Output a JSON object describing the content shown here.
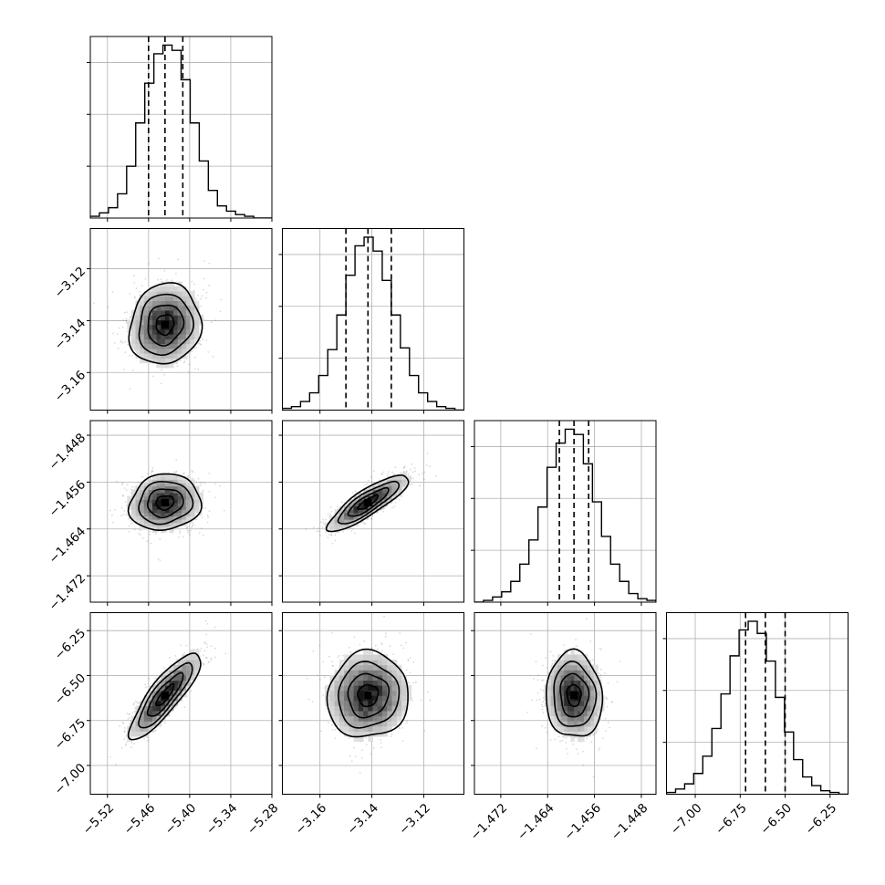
{
  "chart_data": {
    "type": "corner",
    "grid": true,
    "color": "#000000",
    "quantiles": [
      0.16,
      0.5,
      0.84
    ],
    "params": [
      {
        "mean": -5.436,
        "sd": 0.026,
        "lim": [
          -5.545,
          -5.28
        ],
        "ticks": [
          -5.52,
          -5.46,
          -5.4,
          -5.34,
          -5.28
        ],
        "tick_labels": [
          "−5.52",
          "−5.46",
          "−5.40",
          "−5.34",
          "−5.28"
        ],
        "q": [
          -5.46,
          -5.436,
          -5.41
        ],
        "hist": [
          0.01,
          0.03,
          0.06,
          0.14,
          0.3,
          0.55,
          0.78,
          0.95,
          1.0,
          0.97,
          0.8,
          0.55,
          0.33,
          0.16,
          0.07,
          0.04,
          0.02,
          0.01,
          0.0,
          0.0
        ]
      },
      {
        "mean": -3.1415,
        "sd": 0.0078,
        "lim": [
          -3.1745,
          -3.1045
        ],
        "ticks": [
          -3.16,
          -3.14,
          -3.12
        ],
        "tick_labels": [
          "−3.16",
          "−3.14",
          "−3.12"
        ],
        "q": [
          -3.15,
          -3.1415,
          -3.1325
        ],
        "hist": [
          0.01,
          0.02,
          0.05,
          0.1,
          0.2,
          0.35,
          0.55,
          0.78,
          0.95,
          1.0,
          0.92,
          0.75,
          0.55,
          0.36,
          0.2,
          0.1,
          0.05,
          0.02,
          0.01,
          0.0
        ]
      },
      {
        "mean": -1.4595,
        "sd": 0.0024,
        "lim": [
          -1.4765,
          -1.4455
        ],
        "ticks": [
          -1.472,
          -1.464,
          -1.456,
          -1.448
        ],
        "tick_labels": [
          "−1.472",
          "−1.464",
          "−1.456",
          "−1.448"
        ],
        "q": [
          -1.462,
          -1.4595,
          -1.457
        ],
        "hist": [
          0.0,
          0.01,
          0.03,
          0.06,
          0.12,
          0.22,
          0.36,
          0.55,
          0.78,
          0.92,
          1.0,
          0.97,
          0.8,
          0.58,
          0.38,
          0.22,
          0.12,
          0.05,
          0.02,
          0.01
        ]
      },
      {
        "mean": -6.61,
        "sd": 0.12,
        "lim": [
          -7.16,
          -6.15
        ],
        "ticks": [
          -7.0,
          -6.75,
          -6.5,
          -6.25
        ],
        "tick_labels": [
          "−7.00",
          "−6.75",
          "−6.50",
          "−6.25"
        ],
        "q": [
          -6.72,
          -6.61,
          -6.5
        ],
        "hist": [
          0.01,
          0.03,
          0.06,
          0.12,
          0.22,
          0.38,
          0.58,
          0.8,
          0.95,
          1.0,
          0.93,
          0.77,
          0.56,
          0.36,
          0.2,
          0.1,
          0.05,
          0.02,
          0.01,
          0.0
        ]
      }
    ],
    "correlations": [
      [
        1.0,
        0.1,
        0.1,
        0.85
      ],
      [
        0.1,
        1.0,
        0.85,
        0.05
      ],
      [
        0.1,
        0.85,
        1.0,
        -0.05
      ],
      [
        0.85,
        0.05,
        -0.05,
        1.0
      ]
    ]
  }
}
